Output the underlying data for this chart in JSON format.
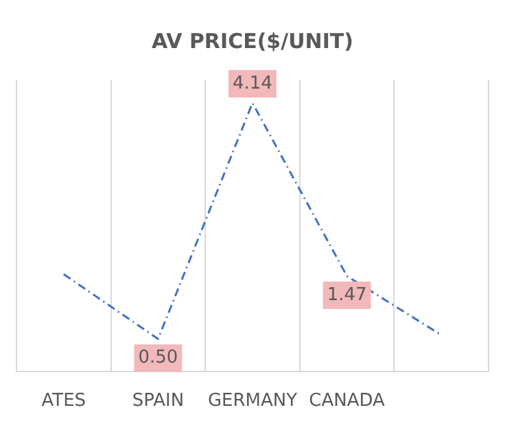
{
  "chart_data": {
    "type": "line",
    "title": "AV PRICE($/UNIT)",
    "categories": [
      "ATES",
      "SPAIN",
      "GERMANY",
      "CANADA",
      null
    ],
    "values": [
      1.5,
      0.5,
      4.14,
      1.47,
      0.56
    ],
    "value_labels": [
      null,
      "0.50",
      "4.14",
      "1.47",
      null
    ],
    "color": "#4472c4",
    "line_style": "dashed",
    "grid": "x",
    "legend": false
  }
}
